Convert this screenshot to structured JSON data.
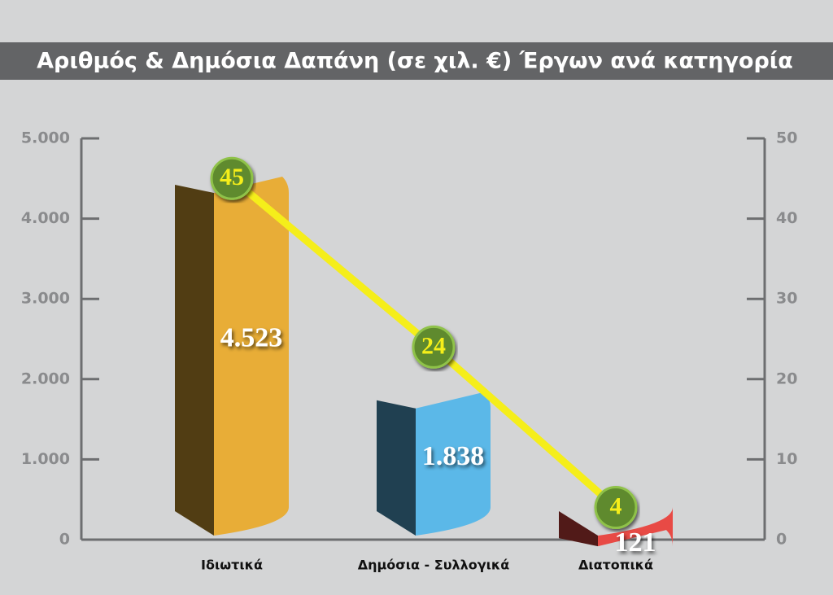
{
  "chart_data": {
    "type": "bar",
    "title": "Αριθμός & Δημόσια Δαπάνη (σε χιλ. €) Έργων ανά κατηγορία",
    "categories": [
      "Ιδιωτικά",
      "Δημόσια - Συλλογικά",
      "Διατοπικά"
    ],
    "series": [
      {
        "type": "bar",
        "colors": [
          "#e8ad37",
          "#5bb8e8",
          "#e84a45"
        ],
        "values": [
          4523,
          1838,
          121
        ],
        "value_labels": [
          "4.523",
          "1.838",
          "121"
        ]
      },
      {
        "type": "line",
        "axis": "y2",
        "color": "#f5ee1a",
        "values": [
          45,
          24,
          4
        ]
      }
    ],
    "ylim": [
      0,
      5000
    ],
    "yticks": [
      0,
      {
        "value": 1000,
        "label": "1.000"
      },
      {
        "value": 2000,
        "label": "2.000"
      },
      {
        "value": 3000,
        "label": "3.000"
      },
      {
        "value": 4000,
        "label": "4.000"
      },
      {
        "value": 5000,
        "label": "5.000"
      }
    ],
    "y2lim": [
      0,
      50
    ],
    "y2ticks": [
      0,
      10,
      20,
      30,
      40,
      50
    ]
  }
}
